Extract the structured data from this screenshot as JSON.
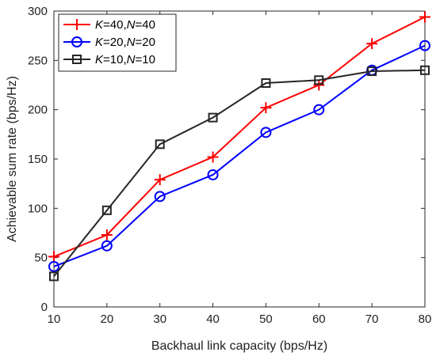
{
  "chart_data": {
    "type": "line",
    "xlabel": "Backhaul link capacity (bps/Hz)",
    "ylabel": "Achievable sum rate (bps/Hz)",
    "x": [
      10,
      20,
      30,
      40,
      50,
      60,
      70,
      80
    ],
    "xlim": [
      10,
      80
    ],
    "ylim": [
      0,
      300
    ],
    "xticks": [
      10,
      20,
      30,
      40,
      50,
      60,
      70,
      80
    ],
    "yticks": [
      0,
      50,
      100,
      150,
      200,
      250,
      300
    ],
    "grid": false,
    "legend_position": "top-left",
    "series": [
      {
        "name": "K=40,N=40",
        "legend_parts": [
          {
            "text": "K",
            "italic": true
          },
          {
            "text": "=40,",
            "italic": false
          },
          {
            "text": "N",
            "italic": true
          },
          {
            "text": "=40",
            "italic": false
          }
        ],
        "color": "#ff0000",
        "marker": "plus",
        "values": [
          51,
          73,
          129,
          152,
          202,
          225,
          267,
          294
        ]
      },
      {
        "name": "K=20,N=20",
        "legend_parts": [
          {
            "text": "K",
            "italic": true
          },
          {
            "text": "=20,",
            "italic": false
          },
          {
            "text": "N",
            "italic": true
          },
          {
            "text": "=20",
            "italic": false
          }
        ],
        "color": "#0000ff",
        "marker": "circle",
        "values": [
          41,
          62,
          112,
          134,
          177,
          200,
          240,
          265
        ]
      },
      {
        "name": "K=10,N=10",
        "legend_parts": [
          {
            "text": "K",
            "italic": true
          },
          {
            "text": "=10,",
            "italic": false
          },
          {
            "text": "N",
            "italic": true
          },
          {
            "text": "=10",
            "italic": false
          }
        ],
        "color": "#262626",
        "marker": "square",
        "values": [
          31,
          98,
          165,
          192,
          227,
          230,
          239,
          240
        ]
      }
    ]
  }
}
